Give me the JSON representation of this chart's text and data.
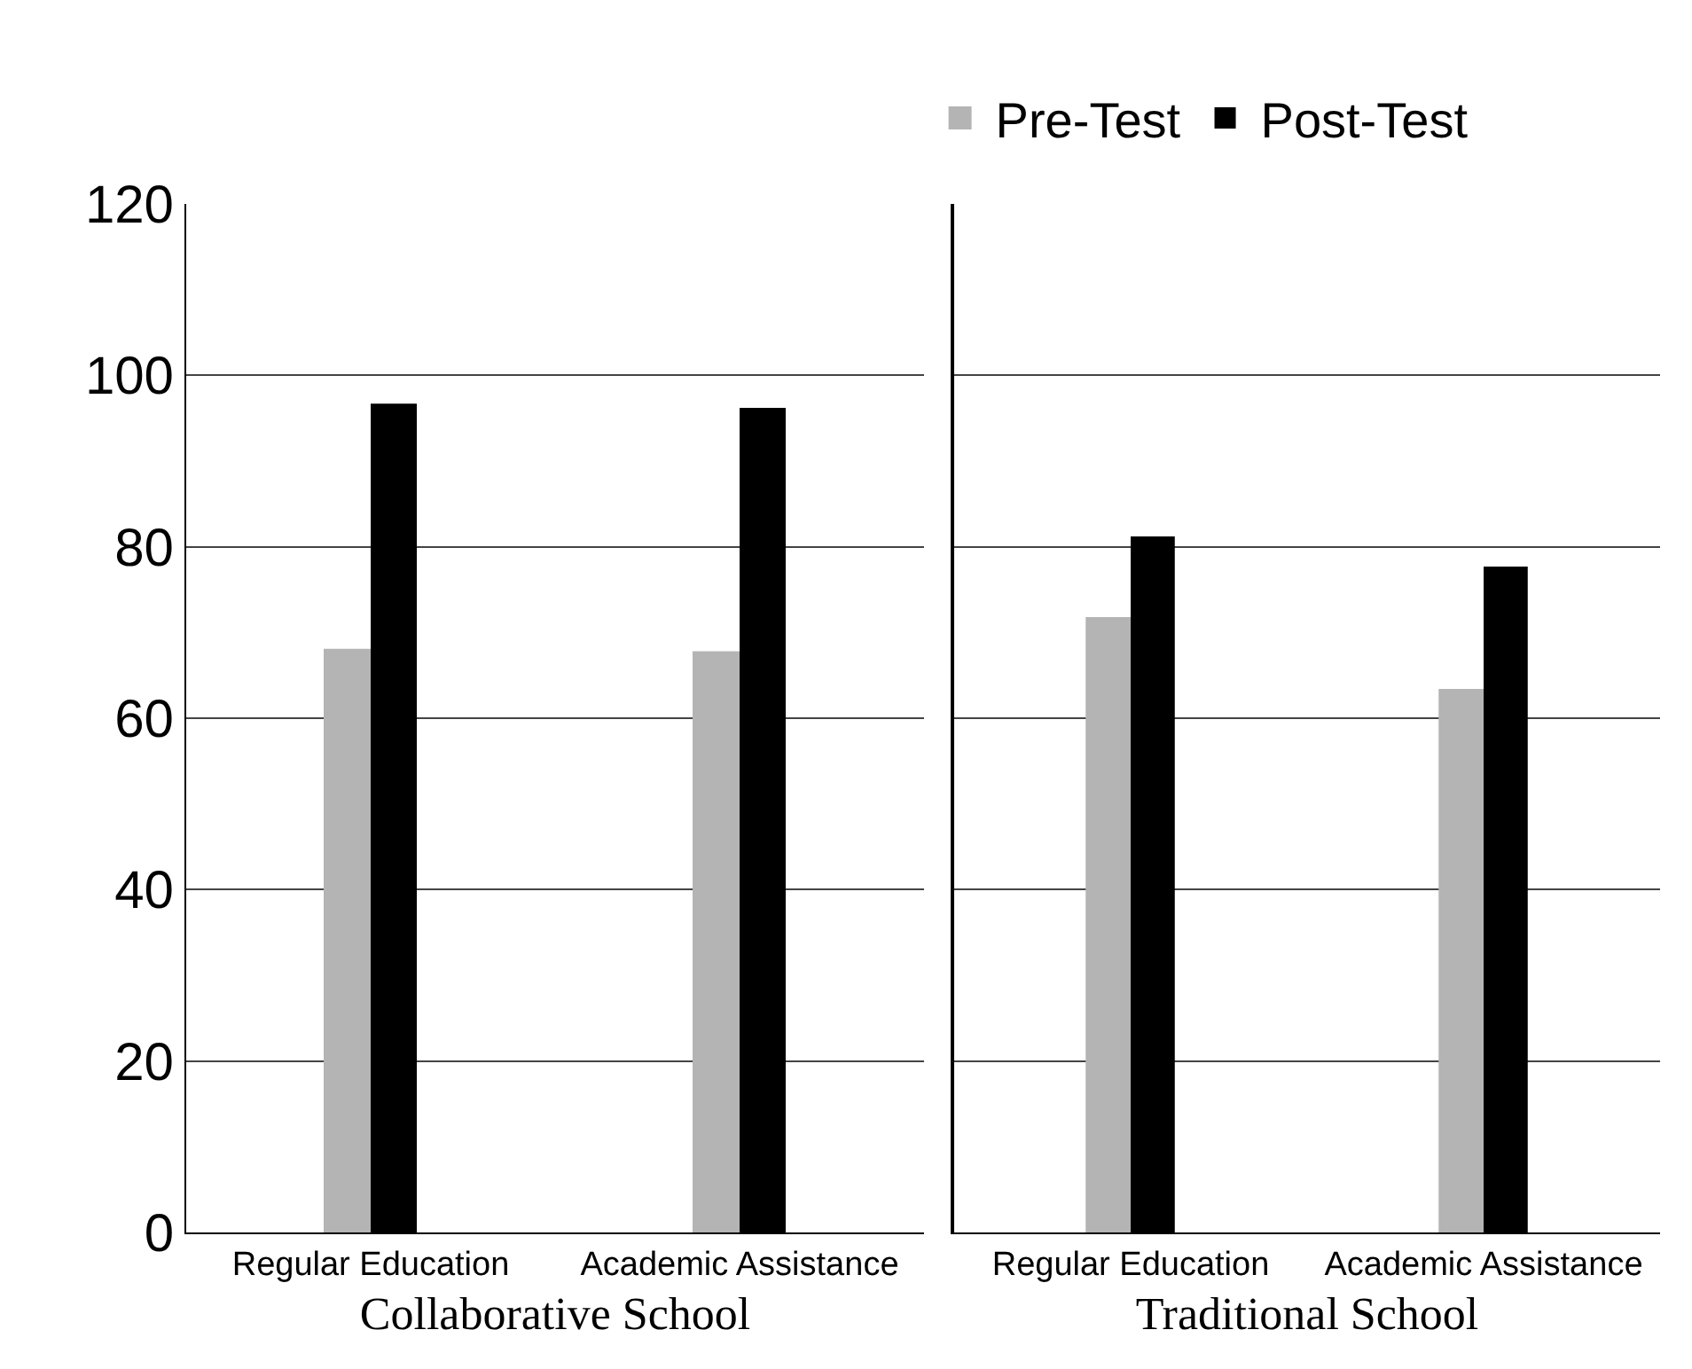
{
  "chart_data": [
    {
      "type": "bar",
      "categories": [
        "Regular Education",
        "Academic Assistance"
      ],
      "xlabel": "Collaborative School",
      "ylim": [
        0,
        120
      ],
      "yticks": [
        0,
        20,
        40,
        60,
        80,
        100,
        120
      ],
      "grid": "y",
      "series": [
        {
          "color": "#b4b4b4",
          "values": [
            68.0,
            67.7
          ]
        },
        {
          "color": "#000000",
          "values": [
            96.7,
            96.2
          ]
        }
      ]
    },
    {
      "type": "bar",
      "categories": [
        "Regular Education",
        "Academic Assistance"
      ],
      "xlabel": "Traditional School",
      "ylim": [
        0,
        120
      ],
      "yticks": [
        0,
        20,
        40,
        60,
        80,
        100,
        120
      ],
      "grid": "y",
      "legend": "top",
      "tick_labels": "x",
      "series": [
        {
          "name": "Pre-Test",
          "color": "#b4b4b4",
          "values": [
            71.7,
            63.3
          ]
        },
        {
          "name": "Post-Test",
          "color": "#000000",
          "values": [
            81.2,
            77.7
          ]
        }
      ]
    }
  ]
}
